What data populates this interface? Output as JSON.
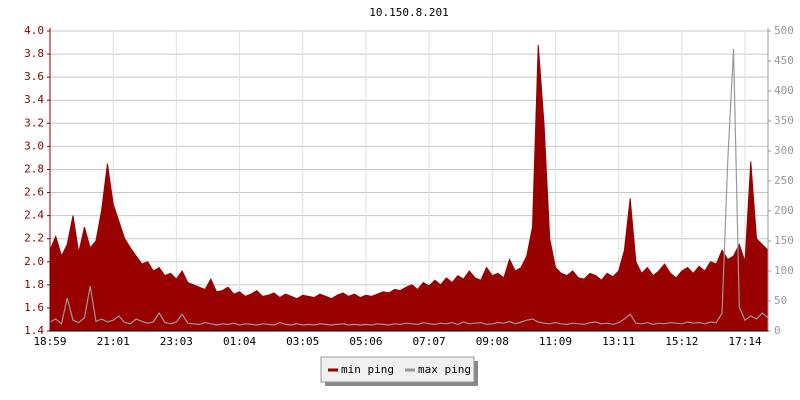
{
  "chart_data": {
    "type": "line",
    "title": "10.150.8.201",
    "categories": [
      "18:59",
      null,
      null,
      null,
      null,
      null,
      null,
      null,
      null,
      null,
      null,
      "21:01",
      null,
      null,
      null,
      null,
      null,
      null,
      null,
      null,
      null,
      null,
      "23:03",
      null,
      null,
      null,
      null,
      null,
      null,
      null,
      null,
      null,
      null,
      "01:04",
      null,
      null,
      null,
      null,
      null,
      null,
      null,
      null,
      null,
      null,
      "03:05",
      null,
      null,
      null,
      null,
      null,
      null,
      null,
      null,
      null,
      null,
      "05:06",
      null,
      null,
      null,
      null,
      null,
      null,
      null,
      null,
      null,
      null,
      "07:07",
      null,
      null,
      null,
      null,
      null,
      null,
      null,
      null,
      null,
      null,
      "09:08",
      null,
      null,
      null,
      null,
      null,
      null,
      null,
      null,
      null,
      null,
      "11:09",
      null,
      null,
      null,
      null,
      null,
      null,
      null,
      null,
      null,
      null,
      "13:11",
      null,
      null,
      null,
      null,
      null,
      null,
      null,
      null,
      null,
      null,
      "15:12",
      null,
      null,
      null,
      null,
      null,
      null,
      null,
      null,
      null,
      null,
      "17:14",
      null,
      null,
      null,
      null
    ],
    "series": [
      {
        "name": "min ping",
        "color": "#990000",
        "fill": true,
        "values": [
          2.1,
          2.22,
          2.05,
          2.15,
          2.4,
          2.08,
          2.3,
          2.12,
          2.18,
          2.45,
          2.85,
          2.5,
          2.35,
          2.2,
          2.12,
          2.05,
          1.98,
          2.0,
          1.92,
          1.95,
          1.88,
          1.9,
          1.85,
          1.92,
          1.82,
          1.8,
          1.78,
          1.76,
          1.85,
          1.74,
          1.75,
          1.78,
          1.72,
          1.74,
          1.7,
          1.72,
          1.75,
          1.7,
          1.71,
          1.73,
          1.69,
          1.72,
          1.7,
          1.68,
          1.71,
          1.7,
          1.69,
          1.72,
          1.7,
          1.68,
          1.71,
          1.73,
          1.7,
          1.72,
          1.69,
          1.71,
          1.7,
          1.72,
          1.74,
          1.73,
          1.76,
          1.75,
          1.78,
          1.8,
          1.76,
          1.82,
          1.79,
          1.84,
          1.8,
          1.86,
          1.82,
          1.88,
          1.85,
          1.92,
          1.86,
          1.84,
          1.95,
          1.88,
          1.9,
          1.86,
          2.02,
          1.92,
          1.95,
          2.05,
          2.3,
          3.88,
          3.2,
          2.2,
          1.95,
          1.9,
          1.88,
          1.92,
          1.86,
          1.85,
          1.9,
          1.88,
          1.84,
          1.9,
          1.87,
          1.92,
          2.1,
          2.55,
          2.0,
          1.9,
          1.95,
          1.88,
          1.92,
          1.98,
          1.9,
          1.86,
          1.92,
          1.95,
          1.9,
          1.96,
          1.92,
          2.0,
          1.98,
          2.1,
          2.02,
          2.05,
          2.15,
          2.0,
          2.87,
          2.2,
          2.15,
          2.1
        ]
      },
      {
        "name": "max ping",
        "color": "#999999",
        "fill": false,
        "axis": "y2",
        "values": [
          15,
          20,
          12,
          55,
          18,
          14,
          22,
          75,
          16,
          20,
          15,
          18,
          25,
          14,
          12,
          20,
          16,
          13,
          15,
          30,
          14,
          12,
          15,
          28,
          13,
          12,
          11,
          14,
          12,
          10,
          12,
          11,
          13,
          10,
          12,
          11,
          10,
          12,
          11,
          10,
          14,
          11,
          10,
          12,
          10,
          11,
          10,
          12,
          11,
          10,
          11,
          12,
          10,
          11,
          10,
          11,
          10,
          12,
          11,
          10,
          12,
          11,
          13,
          12,
          11,
          14,
          12,
          11,
          13,
          12,
          14,
          11,
          15,
          12,
          13,
          14,
          11,
          12,
          14,
          13,
          16,
          12,
          15,
          18,
          20,
          15,
          13,
          12,
          14,
          12,
          11,
          13,
          12,
          11,
          14,
          15,
          12,
          13,
          11,
          14,
          20,
          28,
          13,
          12,
          14,
          11,
          13,
          12,
          14,
          13,
          12,
          15,
          13,
          14,
          12,
          15,
          14,
          30,
          285,
          470,
          40,
          18,
          25,
          20,
          30,
          22
        ]
      }
    ],
    "ylim": [
      1.4,
      4.0
    ],
    "yticks": [
      1.4,
      1.6,
      1.8,
      {
        "value": 2,
        "label": "2.0"
      },
      2.2,
      2.4,
      2.6,
      2.8,
      {
        "value": 3,
        "label": "3.0"
      },
      3.2,
      3.4,
      3.6,
      3.8,
      {
        "value": 4,
        "label": "4.0"
      }
    ],
    "y2lim": [
      0,
      500
    ],
    "y2ticks": [
      0,
      50,
      100,
      150,
      200,
      250,
      300,
      350,
      400,
      450,
      500
    ],
    "grid": true
  }
}
